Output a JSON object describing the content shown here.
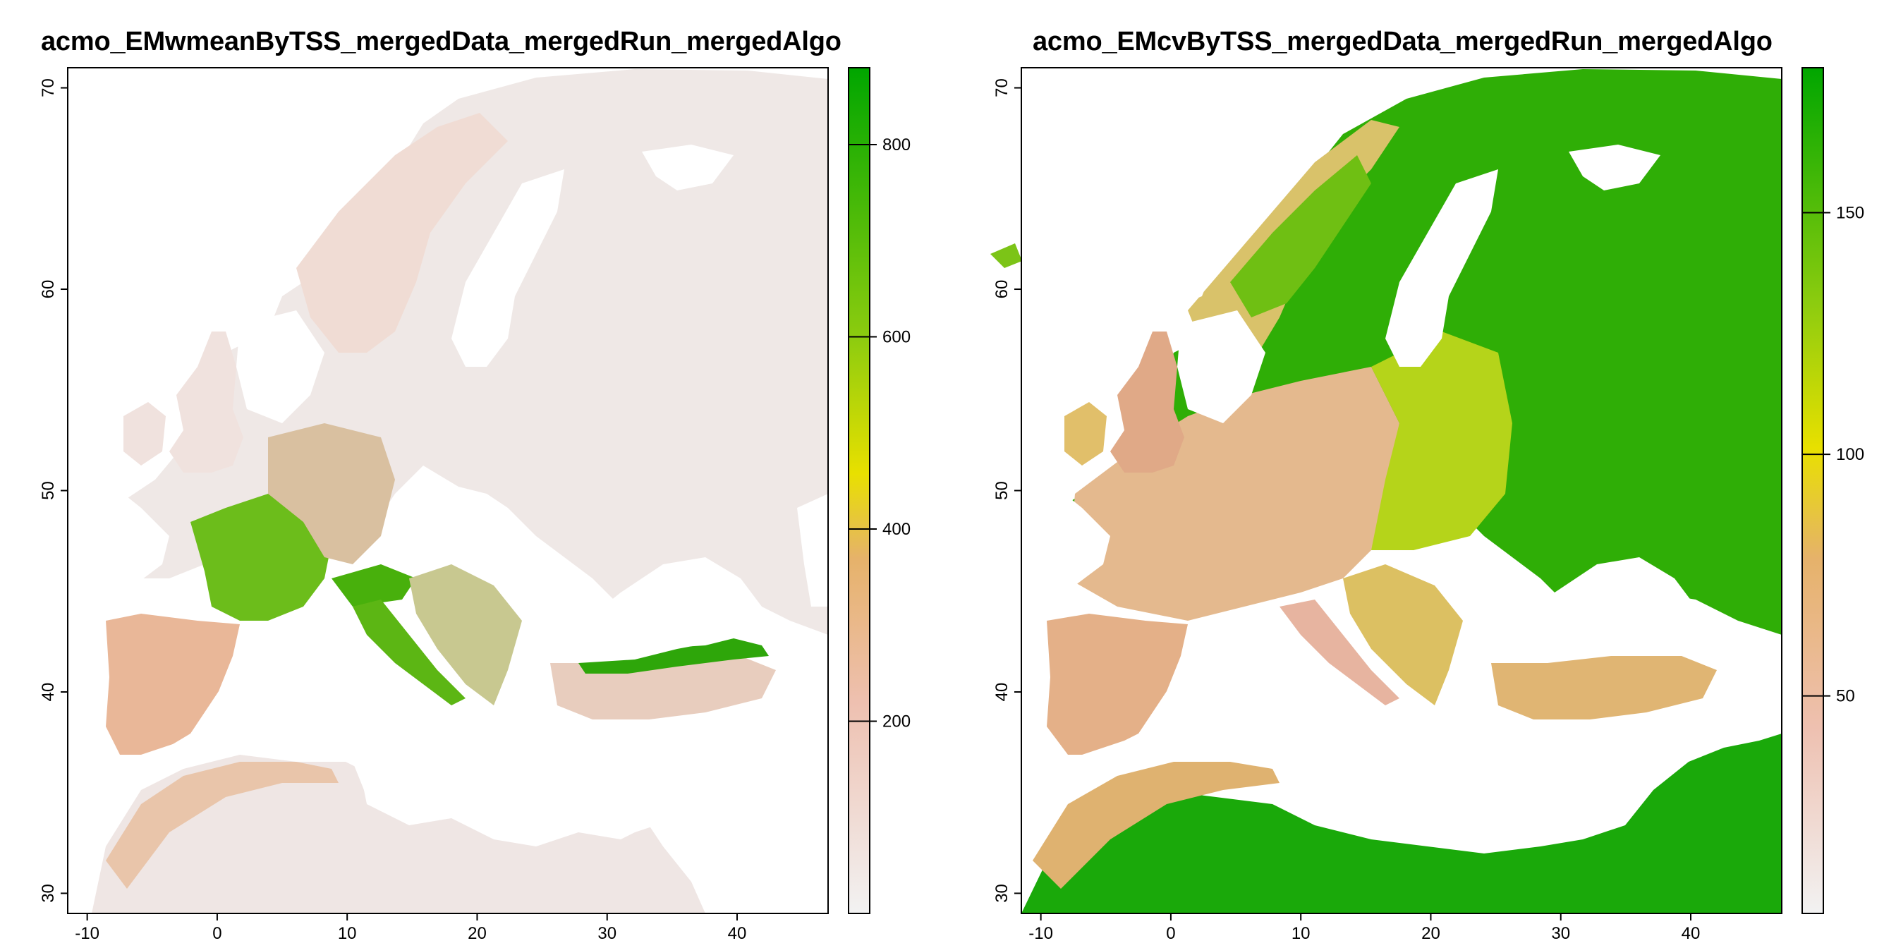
{
  "colors": {
    "background": "#ffffff",
    "ocean": "#ffffff",
    "ramp": [
      "#f2f2f2",
      "#eec0b0",
      "#e6b26a",
      "#e8e000",
      "#8dcc0f",
      "#00a600"
    ]
  },
  "maps": [
    {
      "title": "acmo_EMwmeanByTSS_mergedData_mergedRun_mergedAlgo",
      "legend_ticks": [
        "200",
        "400",
        "600",
        "800"
      ],
      "legend_range": [
        0,
        880
      ],
      "legend_tick_values": [
        200,
        400,
        600,
        800
      ]
    },
    {
      "title": "acmo_EMcvByTSS_mergedData_mergedRun_mergedAlgo",
      "legend_ticks": [
        "50",
        "100",
        "150"
      ],
      "legend_range": [
        5,
        180
      ],
      "legend_tick_values": [
        50,
        100,
        150
      ]
    }
  ],
  "x_ticks": [
    "-10",
    "0",
    "10",
    "20",
    "30",
    "40"
  ],
  "y_ticks": [
    "30",
    "40",
    "50",
    "60",
    "70"
  ],
  "x_tick_values": [
    -10,
    0,
    10,
    20,
    30,
    40
  ],
  "y_tick_values": [
    30,
    40,
    50,
    60,
    70
  ],
  "x_range": [
    -11.5,
    47
  ],
  "y_range": [
    29,
    71
  ]
}
